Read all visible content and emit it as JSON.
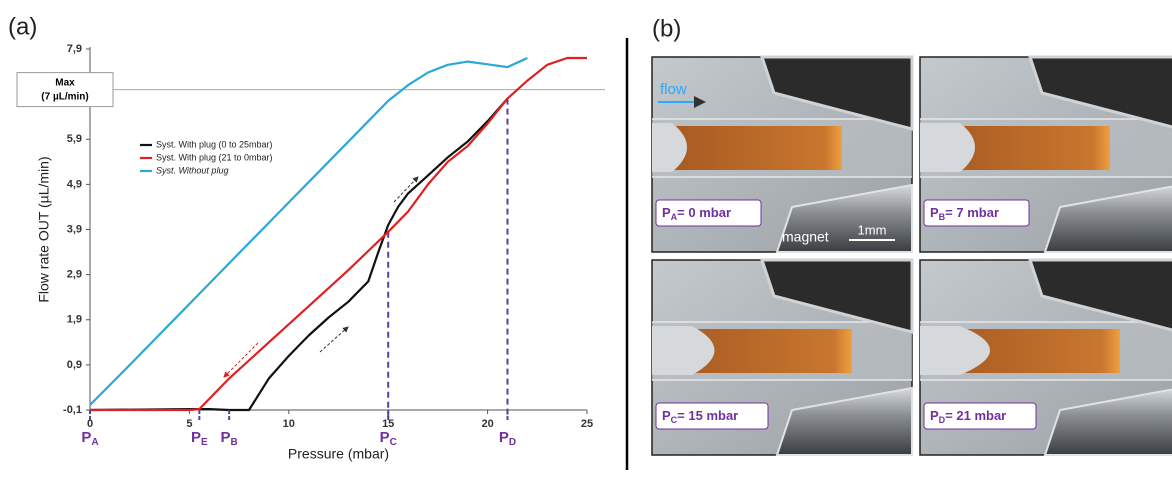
{
  "panel_a_label": "(a)",
  "chart_data": {
    "type": "line",
    "x_label": "Pressure (mbar)",
    "y_label": "Flow rate OUT (µL/min)",
    "xlim": [
      0,
      25
    ],
    "xticks": [
      0,
      5,
      10,
      15,
      20,
      25
    ],
    "ylim": [
      -0.1,
      7.9
    ],
    "yticks": [
      {
        "value": -0.1,
        "label": "-0,1"
      },
      {
        "value": 0.9,
        "label": "0,9"
      },
      {
        "value": 1.9,
        "label": "1,9"
      },
      {
        "value": 2.9,
        "label": "2,9"
      },
      {
        "value": 3.9,
        "label": "3,9"
      },
      {
        "value": 4.9,
        "label": "4,9"
      },
      {
        "value": 5.9,
        "label": "5,9"
      },
      {
        "value": 7.9,
        "label": "7,9"
      }
    ],
    "legend": "upper left",
    "series": [
      {
        "name": "Syst. With plug (0 to 25mbar)",
        "color": "#111111",
        "x": [
          0,
          5,
          6,
          7,
          8,
          9,
          10,
          11,
          12,
          13,
          14,
          14.5,
          15,
          15.5,
          16,
          17,
          18,
          19,
          20,
          21
        ],
        "values": [
          -0.1,
          -0.08,
          -0.08,
          -0.1,
          -0.1,
          0.6,
          1.1,
          1.55,
          1.95,
          2.3,
          2.75,
          3.4,
          4.0,
          4.4,
          4.7,
          5.1,
          5.5,
          5.85,
          6.3,
          6.8
        ]
      },
      {
        "name": "Syst. With plug (21 to 0mbar)",
        "color": "#e02020",
        "x": [
          0,
          5,
          5.5,
          7,
          9,
          11,
          13,
          15,
          16,
          17,
          18,
          19,
          20,
          21,
          22,
          23,
          24,
          25
        ],
        "values": [
          -0.1,
          -0.1,
          -0.08,
          0.6,
          1.4,
          2.2,
          3.0,
          3.85,
          4.3,
          4.9,
          5.4,
          5.75,
          6.25,
          6.8,
          7.2,
          7.55,
          7.7,
          7.7
        ]
      },
      {
        "name": "Syst. Without plug",
        "color": "#2aa8d8",
        "x": [
          0,
          2,
          4,
          6,
          8,
          10,
          12,
          14,
          15,
          16,
          17,
          18,
          19,
          20,
          21,
          22
        ],
        "values": [
          0.01,
          0.9,
          1.8,
          2.7,
          3.6,
          4.5,
          5.4,
          6.3,
          6.75,
          7.1,
          7.38,
          7.55,
          7.62,
          7.56,
          7.5,
          7.7
        ]
      }
    ],
    "max_line": {
      "value": 7,
      "label_lines": [
        "Max",
        "(7 µL/min)"
      ]
    },
    "markers": [
      {
        "x": 0,
        "label": "P",
        "sub": "A"
      },
      {
        "x": 5.5,
        "label": "P",
        "sub": "E"
      },
      {
        "x": 7,
        "label": "P",
        "sub": "B"
      },
      {
        "x": 15,
        "label": "P",
        "sub": "C"
      },
      {
        "x": 21,
        "label": "P",
        "sub": "D"
      }
    ],
    "guides": [
      {
        "x": 15,
        "y": 3.85
      },
      {
        "x": 21,
        "y": 6.8
      }
    ]
  },
  "panel_b": {
    "label": "(b)",
    "flow": "flow",
    "magnet": "magnet",
    "scale": "1mm",
    "photos": [
      {
        "p": "P",
        "sub": "A",
        "text": "= 0 mbar"
      },
      {
        "p": "P",
        "sub": "B",
        "text": "= 7 mbar"
      },
      {
        "p": "P",
        "sub": "C",
        "text": "= 15 mbar"
      },
      {
        "p": "P",
        "sub": "D",
        "text": "= 21 mbar"
      }
    ]
  }
}
